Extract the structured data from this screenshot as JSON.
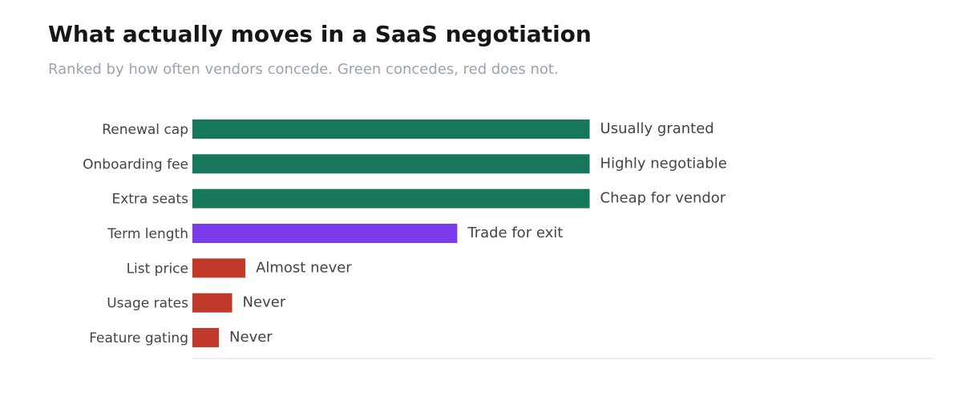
{
  "chart_data": {
    "type": "hbar",
    "title": "What actually moves in a SaaS negotiation",
    "subtitle": "Ranked by how often vendors concede. Green concedes, red does not.",
    "categories": [
      "Renewal cap",
      "Onboarding fee",
      "Extra seats",
      "Term length",
      "List price",
      "Usage rates",
      "Feature gating"
    ],
    "values": [
      15,
      15,
      15,
      10,
      2,
      1.5,
      1
    ],
    "annotations": [
      "Usually granted",
      "Highly negotiable",
      "Cheap for vendor",
      "Trade for exit",
      "Almost never",
      "Never",
      "Never"
    ],
    "colors": [
      "#17775c",
      "#17775c",
      "#17775c",
      "#7c3aed",
      "#c0392b",
      "#c0392b",
      "#c0392b"
    ],
    "xlim": [
      0,
      28
    ]
  }
}
